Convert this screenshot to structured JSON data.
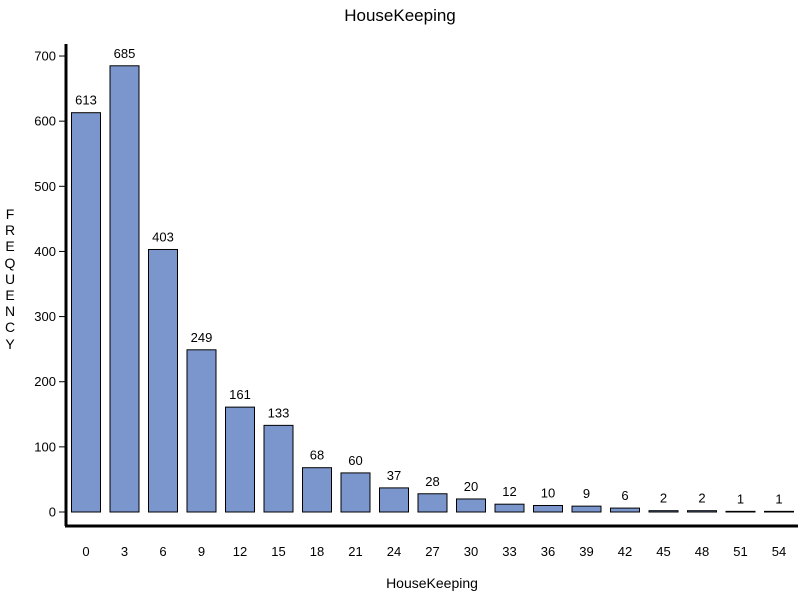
{
  "chart_data": {
    "type": "bar",
    "title": "HouseKeeping",
    "xlabel": "HouseKeeping",
    "ylabel": "FREQUENCY",
    "categories": [
      "0",
      "3",
      "6",
      "9",
      "12",
      "15",
      "18",
      "21",
      "24",
      "27",
      "30",
      "33",
      "36",
      "39",
      "42",
      "45",
      "48",
      "51",
      "54"
    ],
    "values": [
      613,
      685,
      403,
      249,
      161,
      133,
      68,
      60,
      37,
      28,
      20,
      12,
      10,
      9,
      6,
      2,
      2,
      1,
      1
    ],
    "yticks": [
      0,
      100,
      200,
      300,
      400,
      500,
      600,
      700
    ],
    "ylim": [
      0,
      720
    ],
    "grid": false,
    "data_labels": true,
    "bar_color": "#7b96cc",
    "bar_edge_color": "#000000"
  }
}
